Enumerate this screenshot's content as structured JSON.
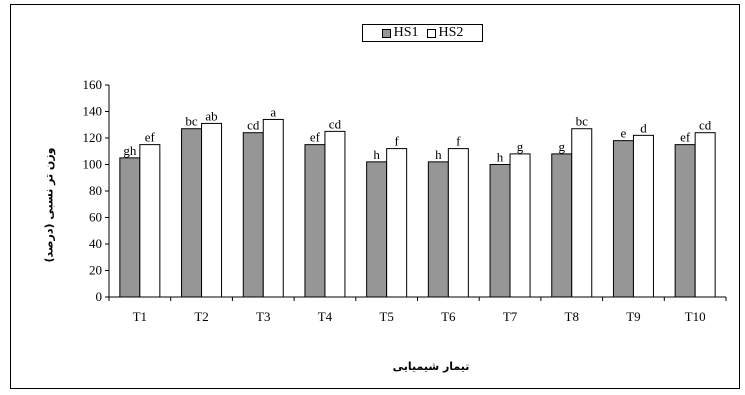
{
  "chart_data": {
    "type": "bar",
    "categories": [
      "T1",
      "T2",
      "T3",
      "T4",
      "T5",
      "T6",
      "T7",
      "T8",
      "T9",
      "T10"
    ],
    "series": [
      {
        "name": "HS1",
        "color": "#969696",
        "values": [
          105,
          127,
          124,
          115,
          102,
          102,
          100,
          108,
          118,
          115
        ],
        "labels": [
          "gh",
          "bc",
          "cd",
          "ef",
          "h",
          "h",
          "h",
          "g",
          "e",
          "ef"
        ]
      },
      {
        "name": "HS2",
        "color": "#ffffff",
        "values": [
          115,
          131,
          134,
          125,
          112,
          112,
          108,
          127,
          122,
          124
        ],
        "labels": [
          "ef",
          "ab",
          "a",
          "cd",
          "f",
          "f",
          "g",
          "bc",
          "d",
          "cd"
        ]
      }
    ],
    "xlabel": "تیمار شیمیایی",
    "ylabel": "وزن تر نسبی (درصد)",
    "ylim": [
      0,
      160
    ],
    "yticks": [
      "0",
      "20",
      "40",
      "60",
      "80",
      "100",
      "120",
      "140",
      "160"
    ],
    "grid": false,
    "legend_position": "top-center"
  }
}
